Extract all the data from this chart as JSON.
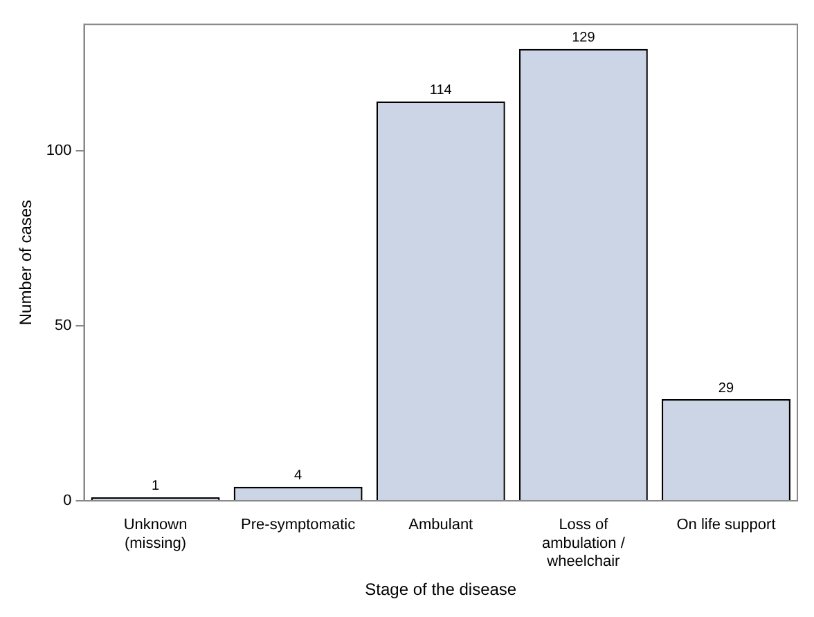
{
  "chart_data": {
    "type": "bar",
    "xlabel": "Stage of the disease",
    "ylabel": "Number of cases",
    "categories": [
      "Unknown (missing)",
      "Pre-symptomatic",
      "Ambulant",
      "Loss of ambulation / wheelchair",
      "On life support"
    ],
    "values": [
      1,
      4,
      114,
      129,
      29
    ],
    "color": "#ccd5e6",
    "ylim": [
      0,
      136
    ],
    "yticks": [
      0,
      50,
      100
    ],
    "grid": false,
    "legend": false,
    "data_labels": true
  }
}
